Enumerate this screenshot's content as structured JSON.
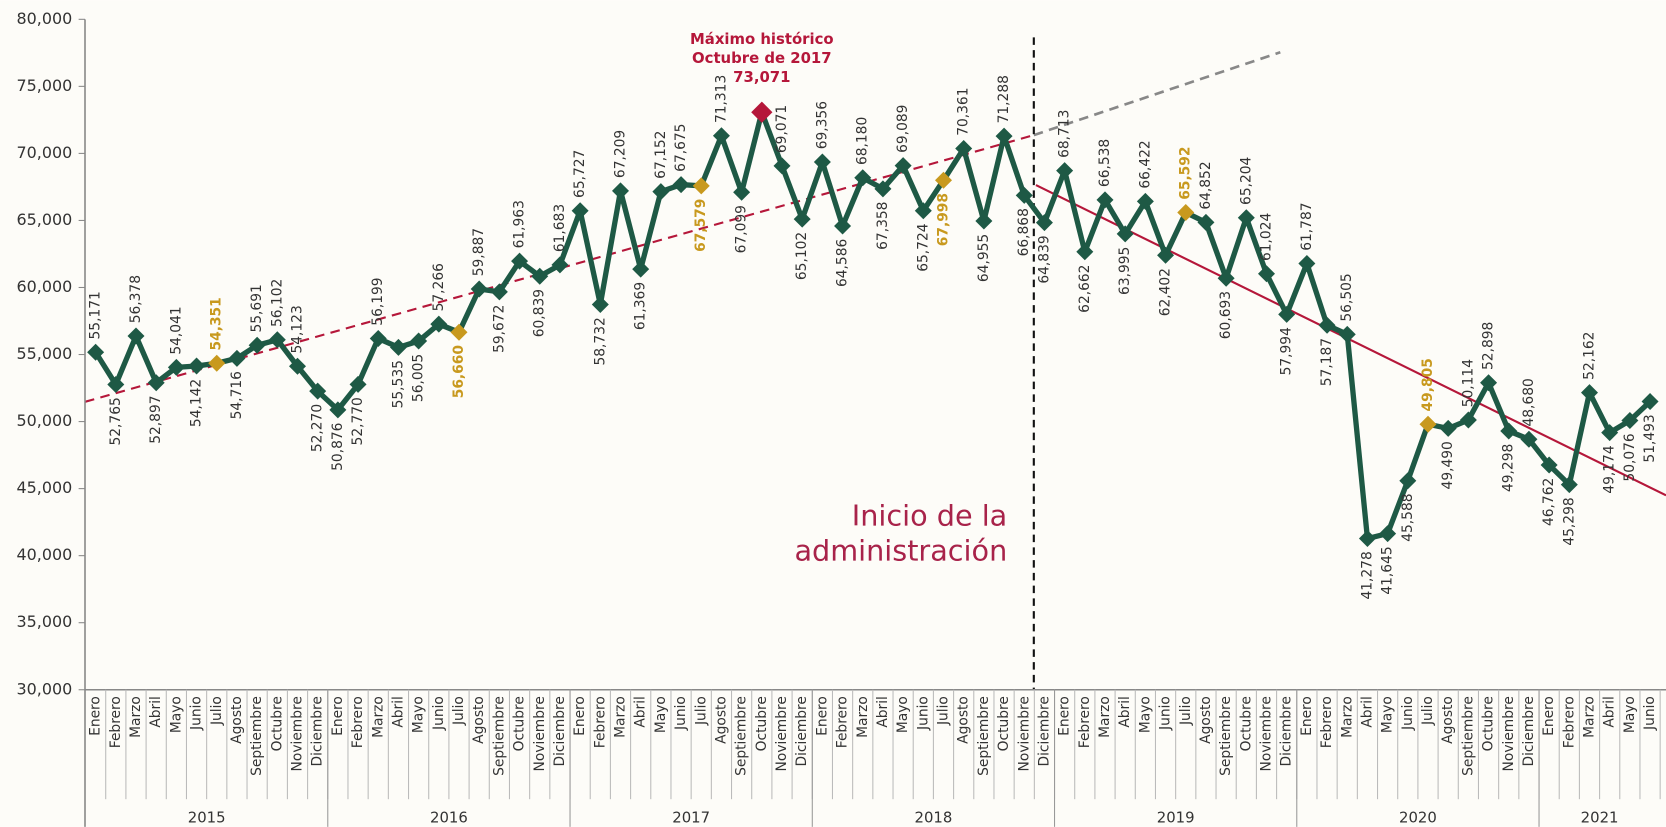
{
  "chart_data": {
    "type": "line",
    "color": "#1e5945",
    "ylim": [
      30000,
      80000
    ],
    "yticks": [
      {
        "value": 30000,
        "label": "30,000"
      },
      {
        "value": 35000,
        "label": "35,000"
      },
      {
        "value": 40000,
        "label": "40,000"
      },
      {
        "value": 45000,
        "label": "45,000"
      },
      {
        "value": 50000,
        "label": "50,000"
      },
      {
        "value": 55000,
        "label": "55,000"
      },
      {
        "value": 60000,
        "label": "60,000"
      },
      {
        "value": 65000,
        "label": "65,000"
      },
      {
        "value": 70000,
        "label": "70,000"
      },
      {
        "value": 75000,
        "label": "75,000"
      },
      {
        "value": 80000,
        "label": "80,000"
      }
    ],
    "years": [
      "2015",
      "2016",
      "2017",
      "2018",
      "2019",
      "2020",
      "2021"
    ],
    "categories": [
      "Enero",
      "Febrero",
      "Marzo",
      "Abril",
      "Mayo",
      "Junio",
      "Julio",
      "Agosto",
      "Septiembre",
      "Octubre",
      "Noviembre",
      "Diciembre",
      "Enero",
      "Febrero",
      "Marzo",
      "Abril",
      "Mayo",
      "Junio",
      "Julio",
      "Agosto",
      "Septiembre",
      "Octubre",
      "Noviembre",
      "Diciembre",
      "Enero",
      "Febrero",
      "Marzo",
      "Abril",
      "Mayo",
      "Junio",
      "Julio",
      "Agosto",
      "Septiembre",
      "Octubre",
      "Noviembre",
      "Diciembre",
      "Enero",
      "Febrero",
      "Marzo",
      "Abril",
      "Mayo",
      "Junio",
      "Julio",
      "Agosto",
      "Septiembre",
      "Octubre",
      "Noviembre",
      "Diciembre",
      "Enero",
      "Febrero",
      "Marzo",
      "Abril",
      "Mayo",
      "Junio",
      "Julio",
      "Agosto",
      "Septiembre",
      "Octubre",
      "Noviembre",
      "Diciembre",
      "Enero",
      "Febrero",
      "Marzo",
      "Abril",
      "Mayo",
      "Junio",
      "Julio",
      "Agosto",
      "Septiembre",
      "Octubre",
      "Noviembre",
      "Diciembre",
      "Enero",
      "Febrero",
      "Marzo",
      "Abril",
      "Mayo",
      "Junio"
    ],
    "values": [
      55171,
      52765,
      56378,
      52897,
      54041,
      54142,
      54351,
      54716,
      55691,
      56102,
      54123,
      52270,
      50876,
      52770,
      56199,
      55535,
      56005,
      57266,
      56660,
      59887,
      59672,
      61963,
      60839,
      61683,
      65727,
      58732,
      67209,
      61369,
      67152,
      67675,
      67579,
      71313,
      67099,
      73071,
      69071,
      65102,
      69356,
      64586,
      68180,
      67358,
      69089,
      65724,
      67998,
      70361,
      64955,
      71288,
      66868,
      64839,
      68713,
      62662,
      66538,
      63995,
      66422,
      62402,
      65592,
      64852,
      60693,
      65204,
      61024,
      57994,
      61787,
      57187,
      56505,
      41278,
      41645,
      45588,
      49805,
      49490,
      50114,
      52898,
      49298,
      48680,
      46762,
      45298,
      52162,
      49174,
      50076,
      51493
    ],
    "value_labels": [
      "55,171",
      "52,765",
      "56,378",
      "52,897",
      "54,041",
      "54,142",
      "54,351",
      "54,716",
      "55,691",
      "56,102",
      "54,123",
      "52,270",
      "50,876",
      "52,770",
      "56,199",
      "55,535",
      "56,005",
      "57,266",
      "56,660",
      "59,887",
      "59,672",
      "61,963",
      "60,839",
      "61,683",
      "65,727",
      "58,732",
      "67,209",
      "61,369",
      "67,152",
      "67,675",
      "67,579",
      "71,313",
      "67,099",
      "73,071",
      "69,071",
      "65,102",
      "69,356",
      "64,586",
      "68,180",
      "67,358",
      "69,089",
      "65,724",
      "67,998",
      "70,361",
      "64,955",
      "71,288",
      "66,868",
      "64,839",
      "68,713",
      "62,662",
      "66,538",
      "63,995",
      "66,422",
      "62,402",
      "65,592",
      "64,852",
      "60,693",
      "65,204",
      "61,024",
      "57,994",
      "61,787",
      "57,187",
      "56,505",
      "41,278",
      "41,645",
      "45,588",
      "49,805",
      "49,490",
      "50,114",
      "52,898",
      "49,298",
      "48,680",
      "46,762",
      "45,298",
      "52,162",
      "49,174",
      "50,076",
      "51,493"
    ],
    "label_positions": [
      "above",
      "below",
      "above",
      "below",
      "above",
      "below",
      "above",
      "below",
      "above",
      "above",
      "above",
      "below",
      "below",
      "below",
      "above",
      "below",
      "below",
      "above",
      "below",
      "above",
      "below",
      "above",
      "below",
      "above",
      "above",
      "below",
      "above",
      "below",
      "above",
      "above",
      "below",
      "above",
      "below",
      "above",
      "above",
      "below",
      "above",
      "below",
      "above",
      "below",
      "above",
      "below",
      "below",
      "above",
      "below",
      "above",
      "below",
      "below",
      "above",
      "below",
      "above",
      "below",
      "above",
      "below",
      "above",
      "above",
      "below",
      "above",
      "above",
      "below",
      "above",
      "below",
      "above",
      "below",
      "below",
      "below",
      "above",
      "below",
      "above",
      "above",
      "below",
      "above",
      "below",
      "below",
      "above",
      "below",
      "below",
      "below"
    ],
    "point_colors": [
      "#1e5945",
      "#1e5945",
      "#1e5945",
      "#1e5945",
      "#1e5945",
      "#1e5945",
      "#c8991e",
      "#1e5945",
      "#1e5945",
      "#1e5945",
      "#1e5945",
      "#1e5945",
      "#1e5945",
      "#1e5945",
      "#1e5945",
      "#1e5945",
      "#1e5945",
      "#1e5945",
      "#c8991e",
      "#1e5945",
      "#1e5945",
      "#1e5945",
      "#1e5945",
      "#1e5945",
      "#1e5945",
      "#1e5945",
      "#1e5945",
      "#1e5945",
      "#1e5945",
      "#1e5945",
      "#c8991e",
      "#1e5945",
      "#1e5945",
      "#b5173a",
      "#1e5945",
      "#1e5945",
      "#1e5945",
      "#1e5945",
      "#1e5945",
      "#1e5945",
      "#1e5945",
      "#1e5945",
      "#c8991e",
      "#1e5945",
      "#1e5945",
      "#1e5945",
      "#1e5945",
      "#1e5945",
      "#1e5945",
      "#1e5945",
      "#1e5945",
      "#1e5945",
      "#1e5945",
      "#1e5945",
      "#c8991e",
      "#1e5945",
      "#1e5945",
      "#1e5945",
      "#1e5945",
      "#1e5945",
      "#1e5945",
      "#1e5945",
      "#1e5945",
      "#1e5945",
      "#1e5945",
      "#1e5945",
      "#c8991e",
      "#1e5945",
      "#1e5945",
      "#1e5945",
      "#1e5945",
      "#1e5945",
      "#1e5945",
      "#1e5945",
      "#1e5945",
      "#1e5945",
      "#1e5945",
      "#1e5945"
    ],
    "annotation": {
      "lines": [
        "Máximo histórico",
        "Octubre de 2017"
      ],
      "color": "#b5173a"
    },
    "admin_marker": {
      "lines": [
        "Inicio de la",
        "administración"
      ],
      "color": "#a8234a"
    }
  }
}
